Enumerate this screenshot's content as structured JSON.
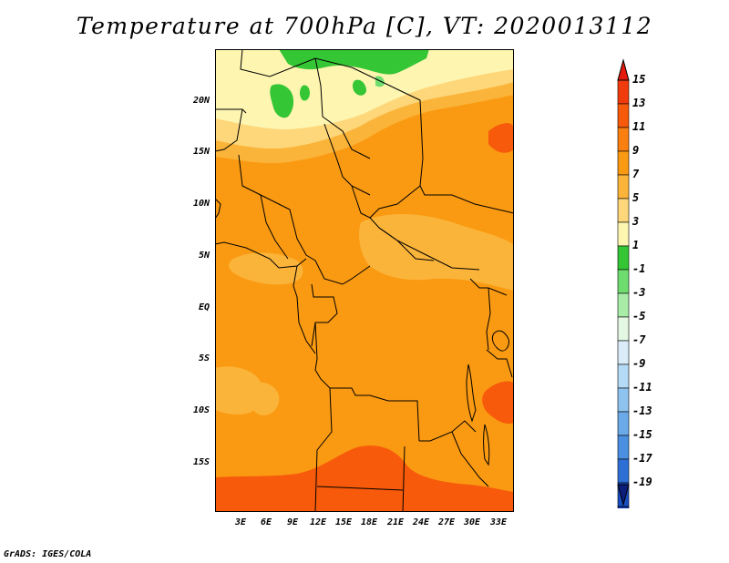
{
  "title": "Temperature at 700hPa [C], VT: 2020013112",
  "footer": "GrADS: IGES/COLA",
  "lat_labels": [
    "20N",
    "15N",
    "10N",
    "5N",
    "EQ",
    "5S",
    "10S",
    "15S"
  ],
  "lon_labels": [
    "3E",
    "6E",
    "9E",
    "12E",
    "15E",
    "18E",
    "21E",
    "24E",
    "27E",
    "30E",
    "33E"
  ],
  "colorbar": {
    "labels": [
      "15",
      "13",
      "11",
      "9",
      "7",
      "5",
      "3",
      "1",
      "-1",
      "-3",
      "-5",
      "-7",
      "-9",
      "-11",
      "-13",
      "-15",
      "-17",
      "-19"
    ],
    "colors": [
      "#e31a0c",
      "#f03c0c",
      "#f75a0a",
      "#f87f10",
      "#fa9a12",
      "#fbb43a",
      "#fdd77a",
      "#fef5b0",
      "#34c634",
      "#6fdc6f",
      "#a8eca8",
      "#e3f7e3",
      "#d9ecf8",
      "#b5daf5",
      "#8ec3ef",
      "#6aaae8",
      "#4a8fe0",
      "#2e6fd6",
      "#1a4fc2",
      "#0c34a6",
      "#0a1e7a"
    ]
  },
  "map_colors": {
    "deep_orange": "#f75a0a",
    "orange": "#fa9a12",
    "light_orange": "#fbb43a",
    "pale": "#fdd77a",
    "cream": "#fef5b0",
    "green": "#34c634",
    "light_green": "#6fdc6f"
  }
}
